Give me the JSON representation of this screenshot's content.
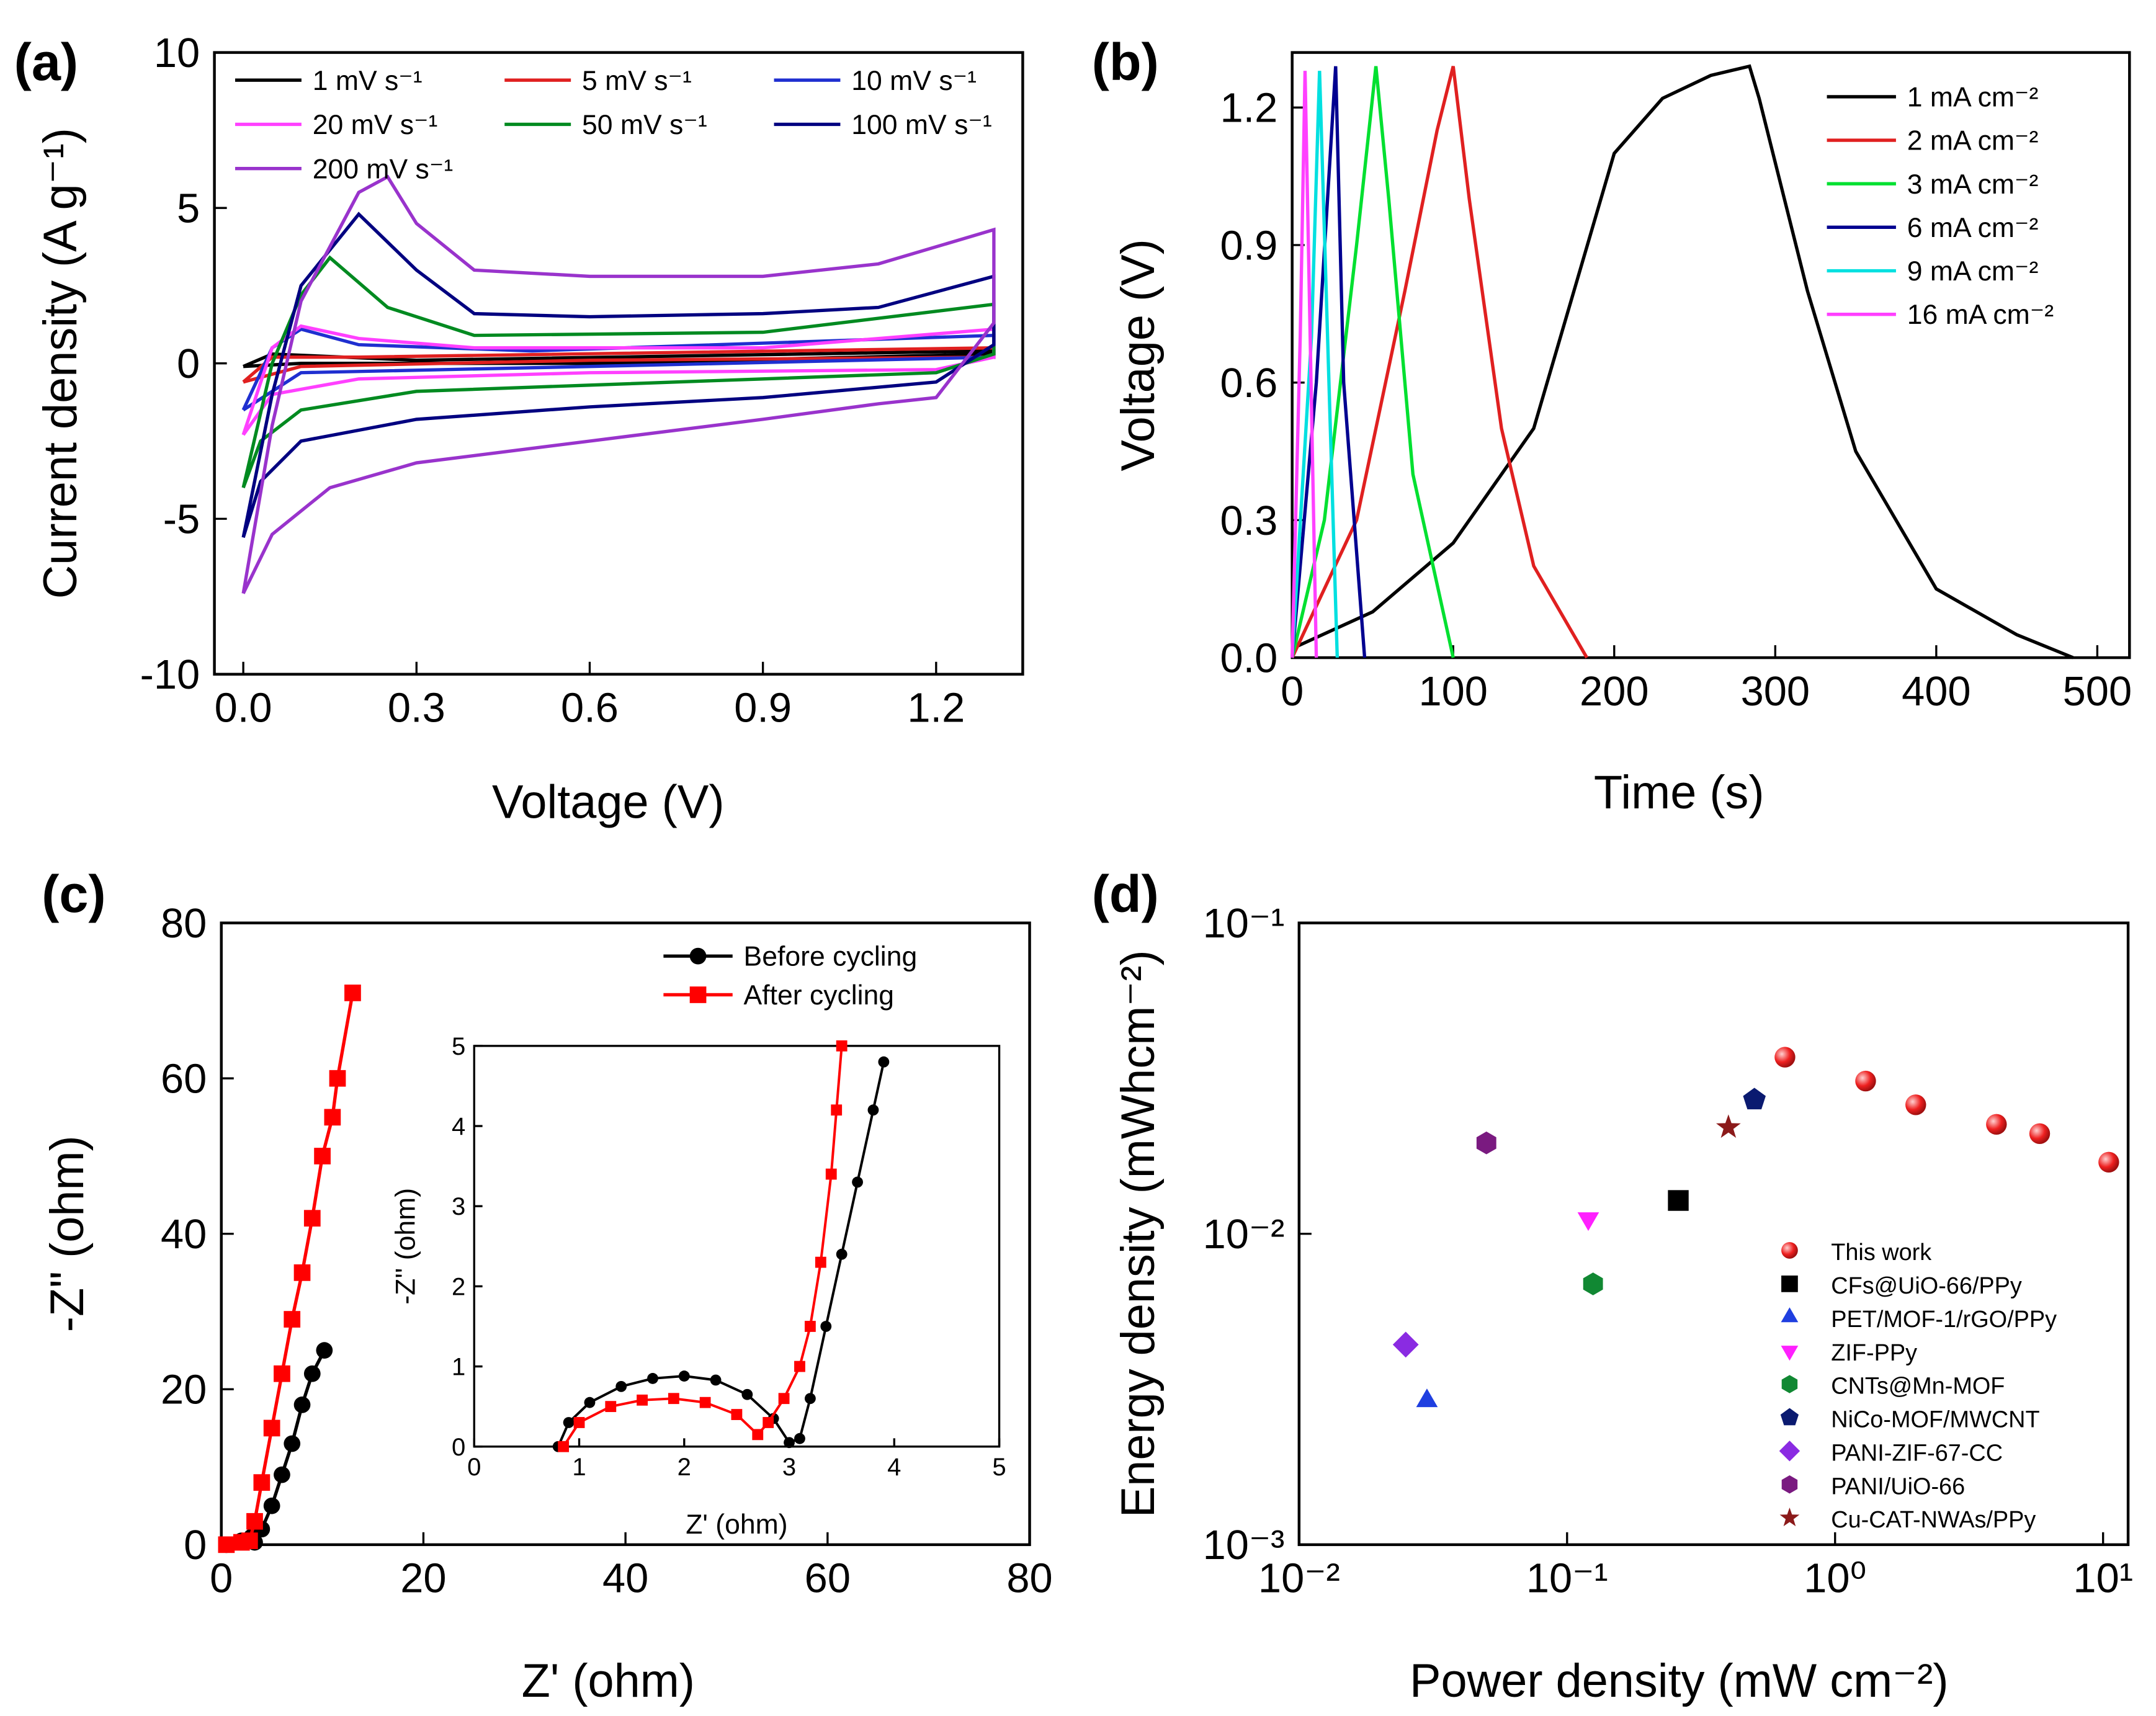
{
  "chart_data": [
    {
      "type": "line",
      "panel_label": "(a)",
      "xlabel": "Voltage (V)",
      "ylabel": "Current density (A g⁻¹)",
      "xlim": [
        -0.05,
        1.35
      ],
      "ylim": [
        -10,
        10
      ],
      "xticks": [
        {
          "value": 0,
          "label": "0.0"
        },
        {
          "value": 0.3,
          "label": "0.3"
        },
        {
          "value": 0.6,
          "label": "0.6"
        },
        {
          "value": 0.9,
          "label": "0.9"
        },
        {
          "value": 1.2,
          "label": "1.2"
        }
      ],
      "yticks": [
        -10,
        -5,
        0,
        5,
        10
      ],
      "legend": "upper",
      "series": [
        {
          "name": "1 mV s⁻¹",
          "color": "#000000",
          "x": [
            0,
            0.05,
            0.3,
            1.3,
            1.3,
            0.6,
            0.1,
            0
          ],
          "values": [
            -0.1,
            0.3,
            0.1,
            0.4,
            0.3,
            0,
            0,
            -0.1
          ]
        },
        {
          "name": "5 mV s⁻¹",
          "color": "#e02020",
          "x": [
            0,
            0.05,
            0.2,
            1.3,
            1.3,
            0.6,
            0.1,
            0
          ],
          "values": [
            -0.6,
            0.2,
            0.2,
            0.5,
            0.2,
            0.1,
            -0.1,
            -0.6
          ]
        },
        {
          "name": "10 mV s⁻¹",
          "color": "#1f2fd0",
          "x": [
            0,
            0.05,
            0.1,
            0.2,
            0.5,
            1.3,
            1.3,
            0.6,
            0.1,
            0
          ],
          "values": [
            -1.5,
            0.5,
            1.1,
            0.6,
            0.4,
            0.9,
            0.2,
            -0.1,
            -0.3,
            -1.5
          ]
        },
        {
          "name": "20 mV s⁻¹",
          "color": "#ff40ff",
          "x": [
            0,
            0.05,
            0.1,
            0.2,
            0.4,
            0.9,
            1.3,
            1.3,
            1.2,
            0.6,
            0.2,
            0.05,
            0
          ],
          "values": [
            -2.3,
            0.5,
            1.2,
            0.8,
            0.5,
            0.5,
            1.1,
            0.2,
            -0.2,
            -0.3,
            -0.5,
            -1,
            -2.3
          ]
        },
        {
          "name": "50 mV s⁻¹",
          "color": "#008a20",
          "x": [
            0,
            0.05,
            0.1,
            0.15,
            0.25,
            0.4,
            0.9,
            1.3,
            1.3,
            1.2,
            0.9,
            0.6,
            0.3,
            0.1,
            0.03,
            0
          ],
          "values": [
            -4,
            0,
            2.2,
            3.4,
            1.8,
            0.9,
            1,
            1.9,
            0.3,
            -0.3,
            -0.5,
            -0.7,
            -0.9,
            -1.5,
            -2.5,
            -4
          ]
        },
        {
          "name": "100 mV s⁻¹",
          "color": "#000080",
          "x": [
            0,
            0.05,
            0.1,
            0.2,
            0.3,
            0.4,
            0.6,
            0.9,
            1.1,
            1.3,
            1.3,
            1.2,
            0.9,
            0.6,
            0.3,
            0.1,
            0.03,
            0
          ],
          "values": [
            -5.6,
            -1,
            2.5,
            4.8,
            3,
            1.6,
            1.5,
            1.6,
            1.8,
            2.8,
            0.6,
            -0.6,
            -1.1,
            -1.4,
            -1.8,
            -2.5,
            -3.8,
            -5.6
          ]
        },
        {
          "name": "200 mV s⁻¹",
          "color": "#9933cc",
          "x": [
            0,
            0.05,
            0.1,
            0.2,
            0.25,
            0.3,
            0.4,
            0.6,
            0.9,
            1.1,
            1.3,
            1.3,
            1.2,
            1.1,
            0.9,
            0.6,
            0.3,
            0.15,
            0.05,
            0
          ],
          "values": [
            -7.4,
            -2,
            2,
            5.5,
            6,
            4.5,
            3,
            2.8,
            2.8,
            3.2,
            4.3,
            1.3,
            -1.1,
            -1.3,
            -1.8,
            -2.5,
            -3.2,
            -4,
            -5.5,
            -7.4
          ]
        }
      ]
    },
    {
      "type": "line",
      "panel_label": "(b)",
      "xlabel": "Time (s)",
      "ylabel": "Voltage (V)",
      "xlim": [
        0,
        520
      ],
      "ylim": [
        0,
        1.32
      ],
      "xticks": [
        0,
        100,
        200,
        300,
        400,
        500
      ],
      "yticks": [
        {
          "value": 0,
          "label": "0.0"
        },
        {
          "value": 0.3,
          "label": "0.3"
        },
        {
          "value": 0.6,
          "label": "0.6"
        },
        {
          "value": 0.9,
          "label": "0.9"
        },
        {
          "value": 1.2,
          "label": "1.2"
        }
      ],
      "legend": "upper right",
      "series": [
        {
          "name": "1 mA cm⁻²",
          "color": "#000000",
          "x": [
            0,
            50,
            100,
            150,
            200,
            230,
            260,
            284,
            290,
            320,
            350,
            400,
            450,
            485
          ],
          "values": [
            0.02,
            0.1,
            0.25,
            0.5,
            1.1,
            1.22,
            1.27,
            1.29,
            1.22,
            0.8,
            0.45,
            0.15,
            0.05,
            0
          ]
        },
        {
          "name": "2 mA cm⁻²",
          "color": "#e02020",
          "x": [
            0,
            40,
            70,
            90,
            100,
            110,
            130,
            150,
            183
          ],
          "values": [
            0,
            0.3,
            0.8,
            1.15,
            1.29,
            1,
            0.5,
            0.2,
            0
          ]
        },
        {
          "name": "3 mA cm⁻²",
          "color": "#00e030",
          "x": [
            0,
            20,
            40,
            52,
            60,
            75,
            100
          ],
          "values": [
            0,
            0.3,
            0.9,
            1.29,
            1,
            0.4,
            0
          ]
        },
        {
          "name": "6 mA cm⁻²",
          "color": "#000090",
          "x": [
            0,
            15,
            27,
            32,
            45
          ],
          "values": [
            0,
            0.6,
            1.29,
            0.6,
            0
          ]
        },
        {
          "name": "9 mA cm⁻²",
          "color": "#00e0e0",
          "x": [
            0,
            12,
            17,
            28
          ],
          "values": [
            0,
            0.7,
            1.28,
            0
          ]
        },
        {
          "name": "16 mA cm⁻²",
          "color": "#ff40ff",
          "x": [
            0,
            5,
            8,
            15
          ],
          "values": [
            0,
            0.7,
            1.28,
            0
          ]
        }
      ]
    },
    {
      "type": "line",
      "panel_label": "(c)",
      "xlabel": "Z' (ohm)",
      "ylabel": "-Z\" (ohm)",
      "xlim": [
        0,
        80
      ],
      "ylim": [
        0,
        80
      ],
      "xticks": [
        0,
        20,
        40,
        60,
        80
      ],
      "yticks": [
        0,
        20,
        40,
        60,
        80
      ],
      "legend": "upper",
      "series": [
        {
          "name": "Before cycling",
          "color": "#000000",
          "marker": "circle",
          "x": [
            0.5,
            2,
            3,
            3.3,
            4,
            5,
            6,
            7,
            8,
            9,
            10.2
          ],
          "values": [
            0,
            0.5,
            1,
            0.3,
            2,
            5,
            9,
            13,
            18,
            22,
            25
          ]
        },
        {
          "name": "After cycling",
          "color": "#ff0000",
          "marker": "square",
          "x": [
            0.5,
            2,
            2.8,
            3.3,
            4,
            5,
            6,
            7,
            8,
            9,
            10,
            11,
            11.5,
            13
          ],
          "values": [
            0,
            0.3,
            0.5,
            3,
            8,
            15,
            22,
            29,
            35,
            42,
            50,
            55,
            60,
            71
          ]
        }
      ]
    },
    {
      "type": "line",
      "xlabel": "Z' (ohm)",
      "ylabel": "-Z'' (ohm)",
      "xlim": [
        0,
        5
      ],
      "ylim": [
        0,
        5
      ],
      "xticks": [
        0,
        1,
        2,
        3,
        4,
        5
      ],
      "yticks": [
        0,
        1,
        2,
        3,
        4,
        5
      ],
      "series": [
        {
          "color": "#000000",
          "marker": "circle",
          "x": [
            0.8,
            0.9,
            1.1,
            1.4,
            1.7,
            2,
            2.3,
            2.6,
            2.85,
            3,
            3.1,
            3.2,
            3.35,
            3.5,
            3.65,
            3.8,
            3.9
          ],
          "values": [
            0,
            0.3,
            0.55,
            0.75,
            0.85,
            0.88,
            0.83,
            0.65,
            0.35,
            0.05,
            0.1,
            0.6,
            1.5,
            2.4,
            3.3,
            4.2,
            4.8
          ]
        },
        {
          "color": "#ff0000",
          "marker": "square",
          "x": [
            0.85,
            1,
            1.3,
            1.6,
            1.9,
            2.2,
            2.5,
            2.7,
            2.8,
            2.95,
            3.1,
            3.2,
            3.3,
            3.4,
            3.45,
            3.5
          ],
          "values": [
            0,
            0.3,
            0.5,
            0.58,
            0.6,
            0.55,
            0.4,
            0.15,
            0.3,
            0.6,
            1,
            1.5,
            2.3,
            3.4,
            4.2,
            5
          ]
        }
      ]
    },
    {
      "type": "scatter",
      "panel_label": "(d)",
      "xlabel": "Power density (mW cm⁻²)",
      "ylabel": "Energy density (mWhcm⁻²)",
      "xscale": "log",
      "yscale": "log",
      "xlim": [
        0.01,
        12.4
      ],
      "ylim": [
        0.001,
        0.1
      ],
      "xticks": [
        {
          "value": 0.01,
          "label": "10⁻²"
        },
        {
          "value": 0.1,
          "label": "10⁻¹"
        },
        {
          "value": 1,
          "label": "10⁰"
        },
        {
          "value": 10,
          "label": "10¹"
        }
      ],
      "yticks": [
        {
          "value": 0.001,
          "label": "10⁻³"
        },
        {
          "value": 0.01,
          "label": "10⁻²"
        },
        {
          "value": 0.1,
          "label": "10⁻¹"
        }
      ],
      "legend": "lower right",
      "series": [
        {
          "name": "This work",
          "color": "#ee2020",
          "marker": "sphere",
          "x": [
            0.65,
            1.3,
            2,
            4,
            5.8,
            10.5
          ],
          "values": [
            0.037,
            0.031,
            0.026,
            0.0225,
            0.021,
            0.017
          ]
        },
        {
          "name": "CFs@UiO-66/PPy",
          "color": "#000000",
          "marker": "square",
          "x": [
            0.26
          ],
          "values": [
            0.0128
          ]
        },
        {
          "name": "PET/MOF-1/rGO/PPy",
          "color": "#1f3fe0",
          "marker": "triangle",
          "x": [
            0.03
          ],
          "values": [
            0.0029
          ]
        },
        {
          "name": "ZIF-PPy",
          "color": "#ff20ff",
          "marker": "triangle-down",
          "x": [
            0.12
          ],
          "values": [
            0.0112
          ]
        },
        {
          "name": "CNTs@Mn-MOF",
          "color": "#118833",
          "marker": "hexagon",
          "x": [
            0.125
          ],
          "values": [
            0.0069
          ]
        },
        {
          "name": "NiCo-MOF/MWCNT",
          "color": "#0a1a70",
          "marker": "pentagon",
          "x": [
            0.5
          ],
          "values": [
            0.027
          ]
        },
        {
          "name": "PANI-ZIF-67-CC",
          "color": "#8a2be2",
          "marker": "diamond",
          "x": [
            0.025
          ],
          "values": [
            0.0044
          ]
        },
        {
          "name": "PANI/UiO-66",
          "color": "#7a1a80",
          "marker": "hexagon",
          "x": [
            0.05
          ],
          "values": [
            0.0196
          ]
        },
        {
          "name": "Cu-CAT-NWAs/PPy",
          "color": "#8b1a1a",
          "marker": "star",
          "x": [
            0.4
          ],
          "values": [
            0.022
          ]
        }
      ]
    }
  ]
}
